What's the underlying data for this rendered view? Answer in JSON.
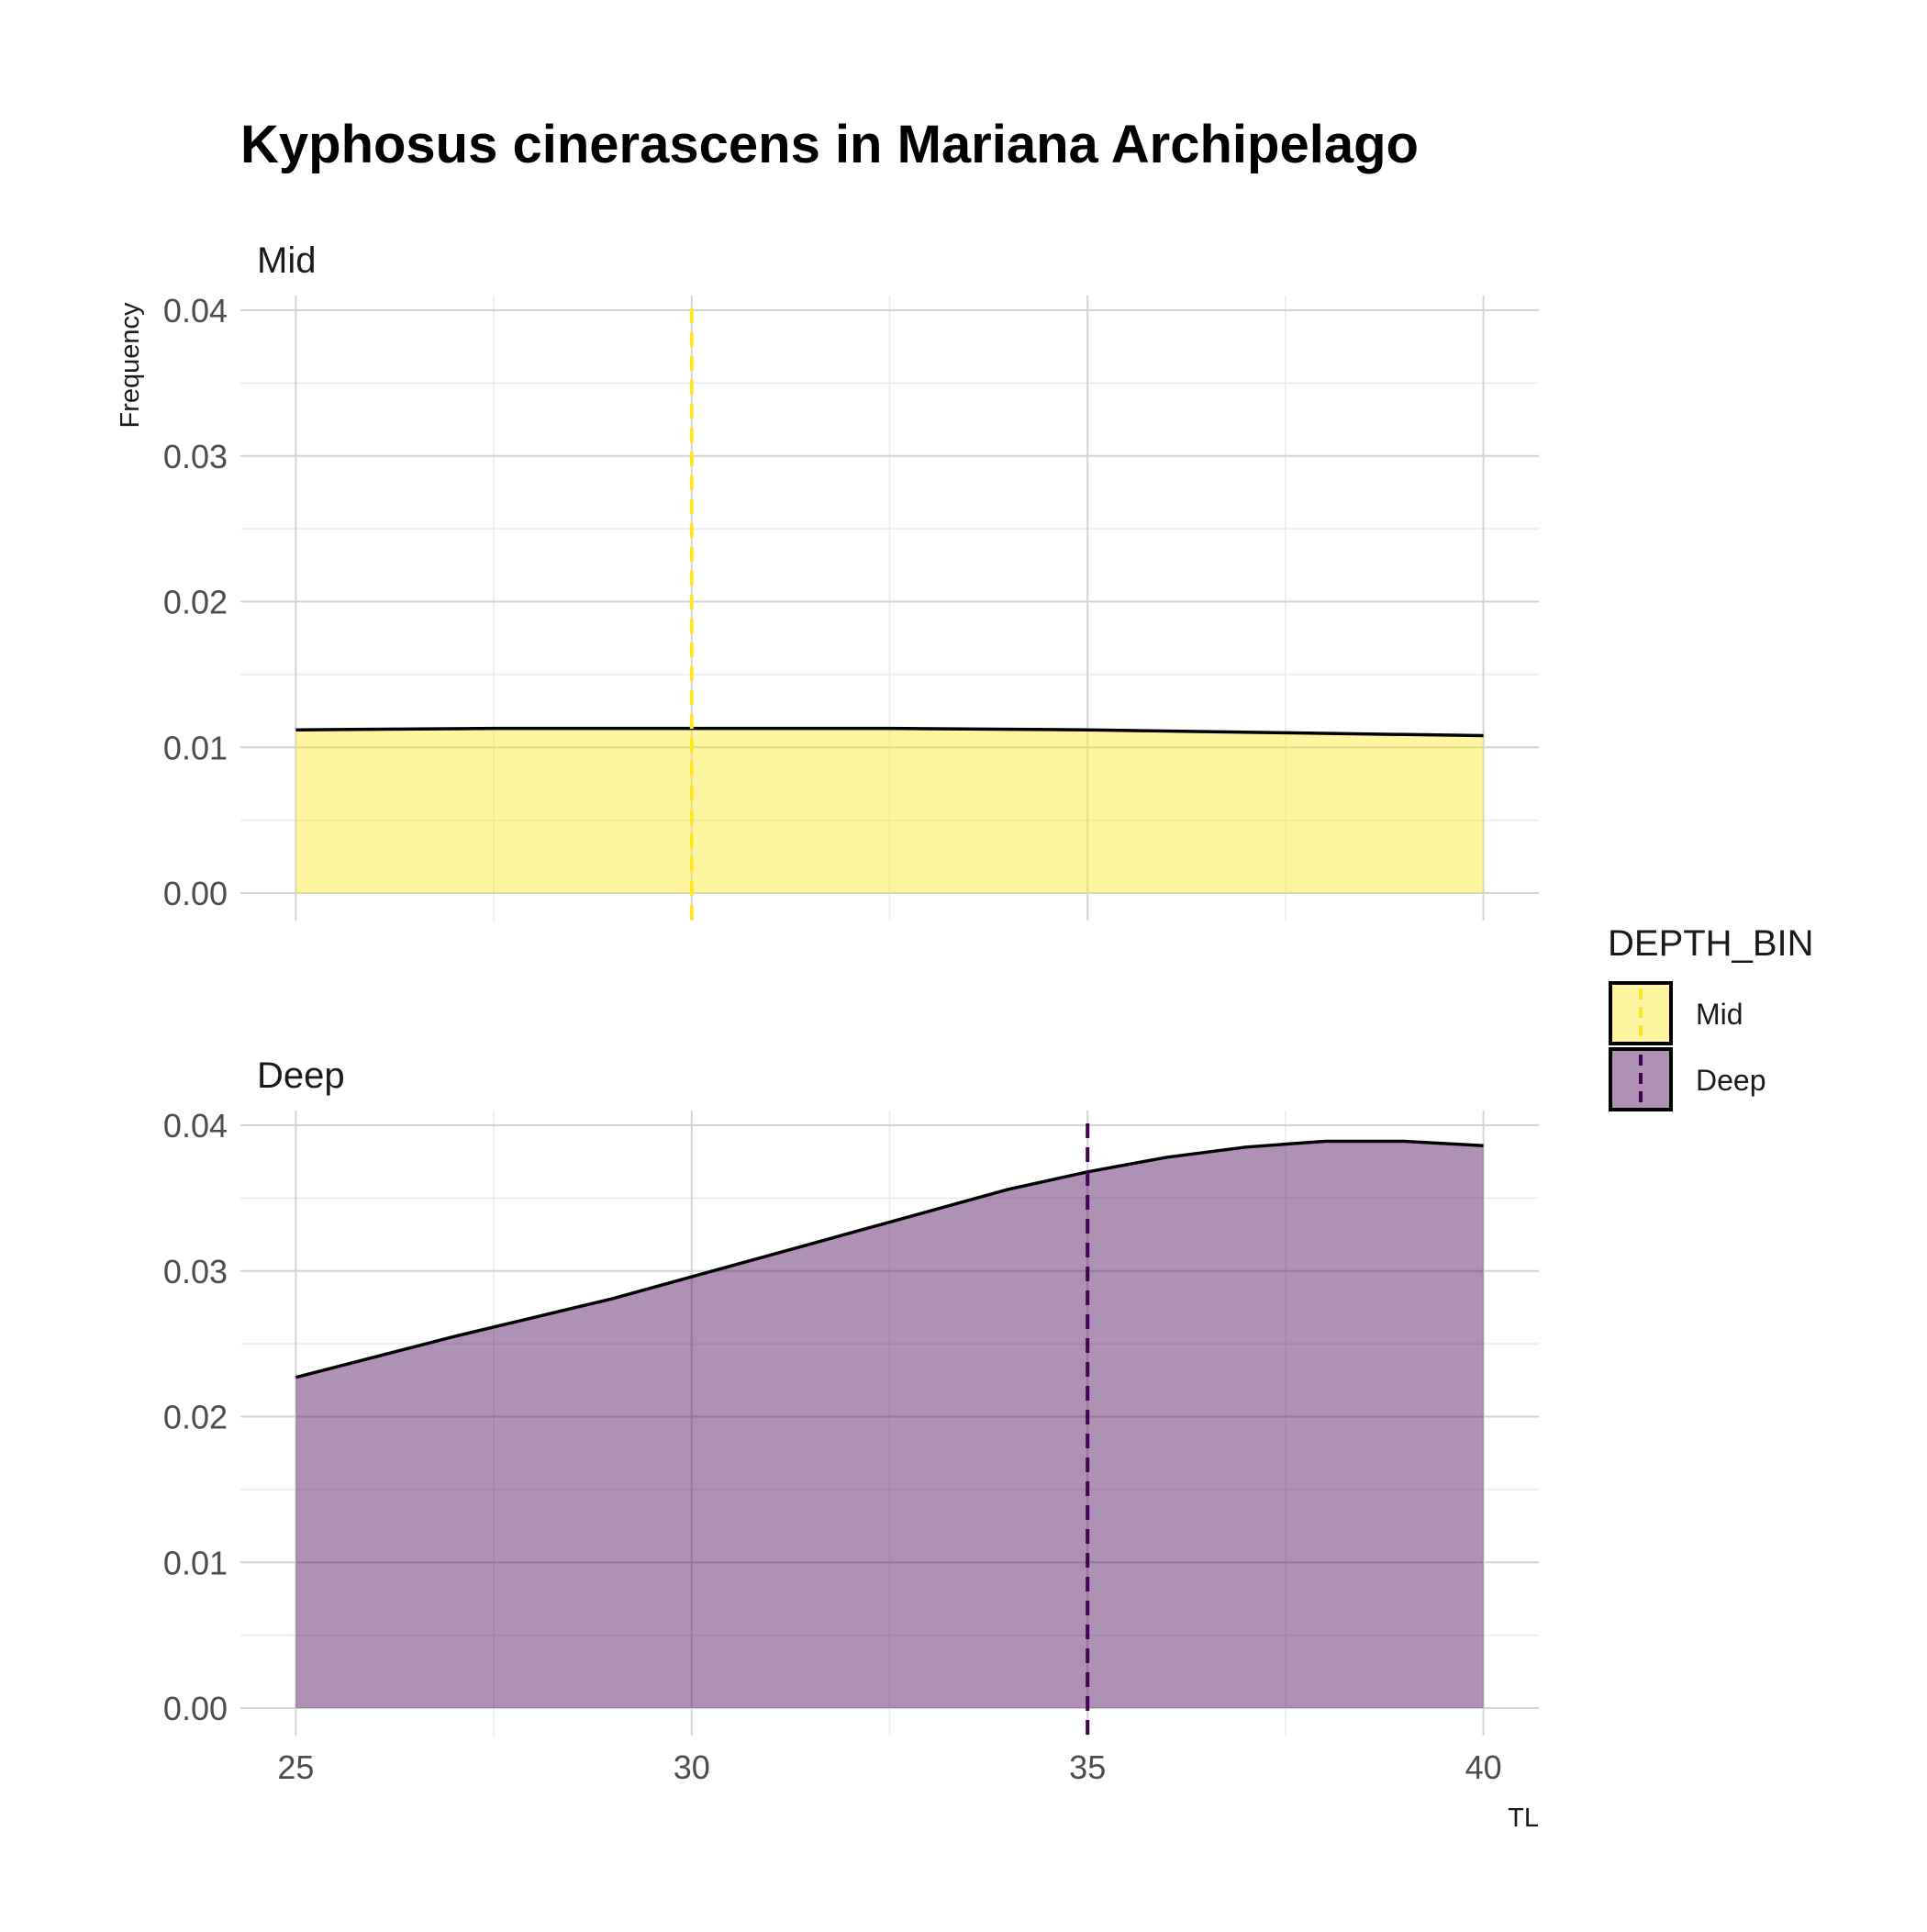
{
  "chart_data": {
    "type": "area",
    "title": "Kyphosus cinerascens in Mariana Archipelago",
    "xlabel": "TL",
    "ylabel": "Frequency",
    "xlim": [
      24.3,
      40.7
    ],
    "ylim": [
      0,
      0.04
    ],
    "x_ticks": [
      25,
      30,
      35,
      40
    ],
    "x_tick_labels": [
      "25",
      "30",
      "35",
      "40"
    ],
    "y_ticks": [
      0,
      0.01,
      0.02,
      0.03,
      0.04
    ],
    "y_tick_labels": [
      "0.00",
      "0.01",
      "0.02",
      "0.03",
      "0.04"
    ],
    "grid": true,
    "legend": {
      "title": "DEPTH_BIN",
      "position": "right",
      "entries": [
        "Mid",
        "Deep"
      ]
    },
    "panels": [
      {
        "strip": "Mid",
        "fill_color": "#fde725",
        "line_color": "#000000",
        "mean_line_color": "#fde725",
        "mean_x": 30,
        "x": [
          25,
          27.5,
          30,
          32.5,
          35,
          37.5,
          40
        ],
        "y": [
          0.0112,
          0.0113,
          0.0113,
          0.0113,
          0.0112,
          0.011,
          0.0108
        ]
      },
      {
        "strip": "Deep",
        "fill_color": "#440154",
        "line_color": "#000000",
        "mean_line_color": "#440154",
        "mean_x": 35,
        "x": [
          25,
          26,
          27,
          28,
          29,
          30,
          31,
          32,
          33,
          34,
          35,
          36,
          37,
          38,
          39,
          40
        ],
        "y": [
          0.0227,
          0.0241,
          0.0255,
          0.0268,
          0.0281,
          0.0296,
          0.0311,
          0.0326,
          0.0341,
          0.0356,
          0.0368,
          0.0378,
          0.0385,
          0.0389,
          0.0389,
          0.0386
        ]
      }
    ]
  }
}
